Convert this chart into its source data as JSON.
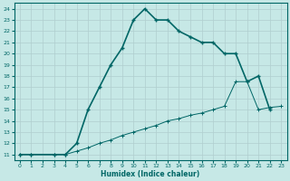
{
  "xlabel": "Humidex (Indice chaleur)",
  "bg_color": "#c6e8e6",
  "grid_color": "#b0cece",
  "line_color": "#006666",
  "xlim": [
    -0.5,
    23.5
  ],
  "ylim": [
    10.5,
    24.5
  ],
  "xticks": [
    0,
    1,
    2,
    3,
    4,
    5,
    6,
    7,
    8,
    9,
    10,
    11,
    12,
    13,
    14,
    15,
    16,
    17,
    18,
    19,
    20,
    21,
    22,
    23
  ],
  "yticks": [
    11,
    12,
    13,
    14,
    15,
    16,
    17,
    18,
    19,
    20,
    21,
    22,
    23,
    24
  ],
  "curve1_x": [
    0,
    1,
    3,
    4,
    5,
    6,
    7,
    8,
    9,
    10,
    11,
    12,
    13,
    14,
    15,
    16,
    17,
    18,
    19,
    20,
    21,
    22
  ],
  "curve1_y": [
    11,
    11,
    11,
    11,
    12,
    15,
    17,
    19,
    20.5,
    23,
    24,
    23,
    23,
    22,
    21.5,
    21,
    21,
    20,
    20,
    17.5,
    18,
    15
  ],
  "curve2_x": [
    0,
    1,
    3,
    4,
    5,
    6,
    7,
    8,
    9,
    10,
    11,
    12,
    13,
    14,
    15,
    16,
    17,
    18,
    19,
    20,
    21,
    22,
    23
  ],
  "curve2_y": [
    11,
    11,
    11,
    11,
    11.3,
    11.6,
    12,
    12.3,
    12.7,
    13.0,
    13.3,
    13.6,
    14.0,
    14.2,
    14.5,
    14.7,
    15.0,
    15.3,
    17.5,
    17.5,
    15.0,
    15.2,
    15.3
  ]
}
